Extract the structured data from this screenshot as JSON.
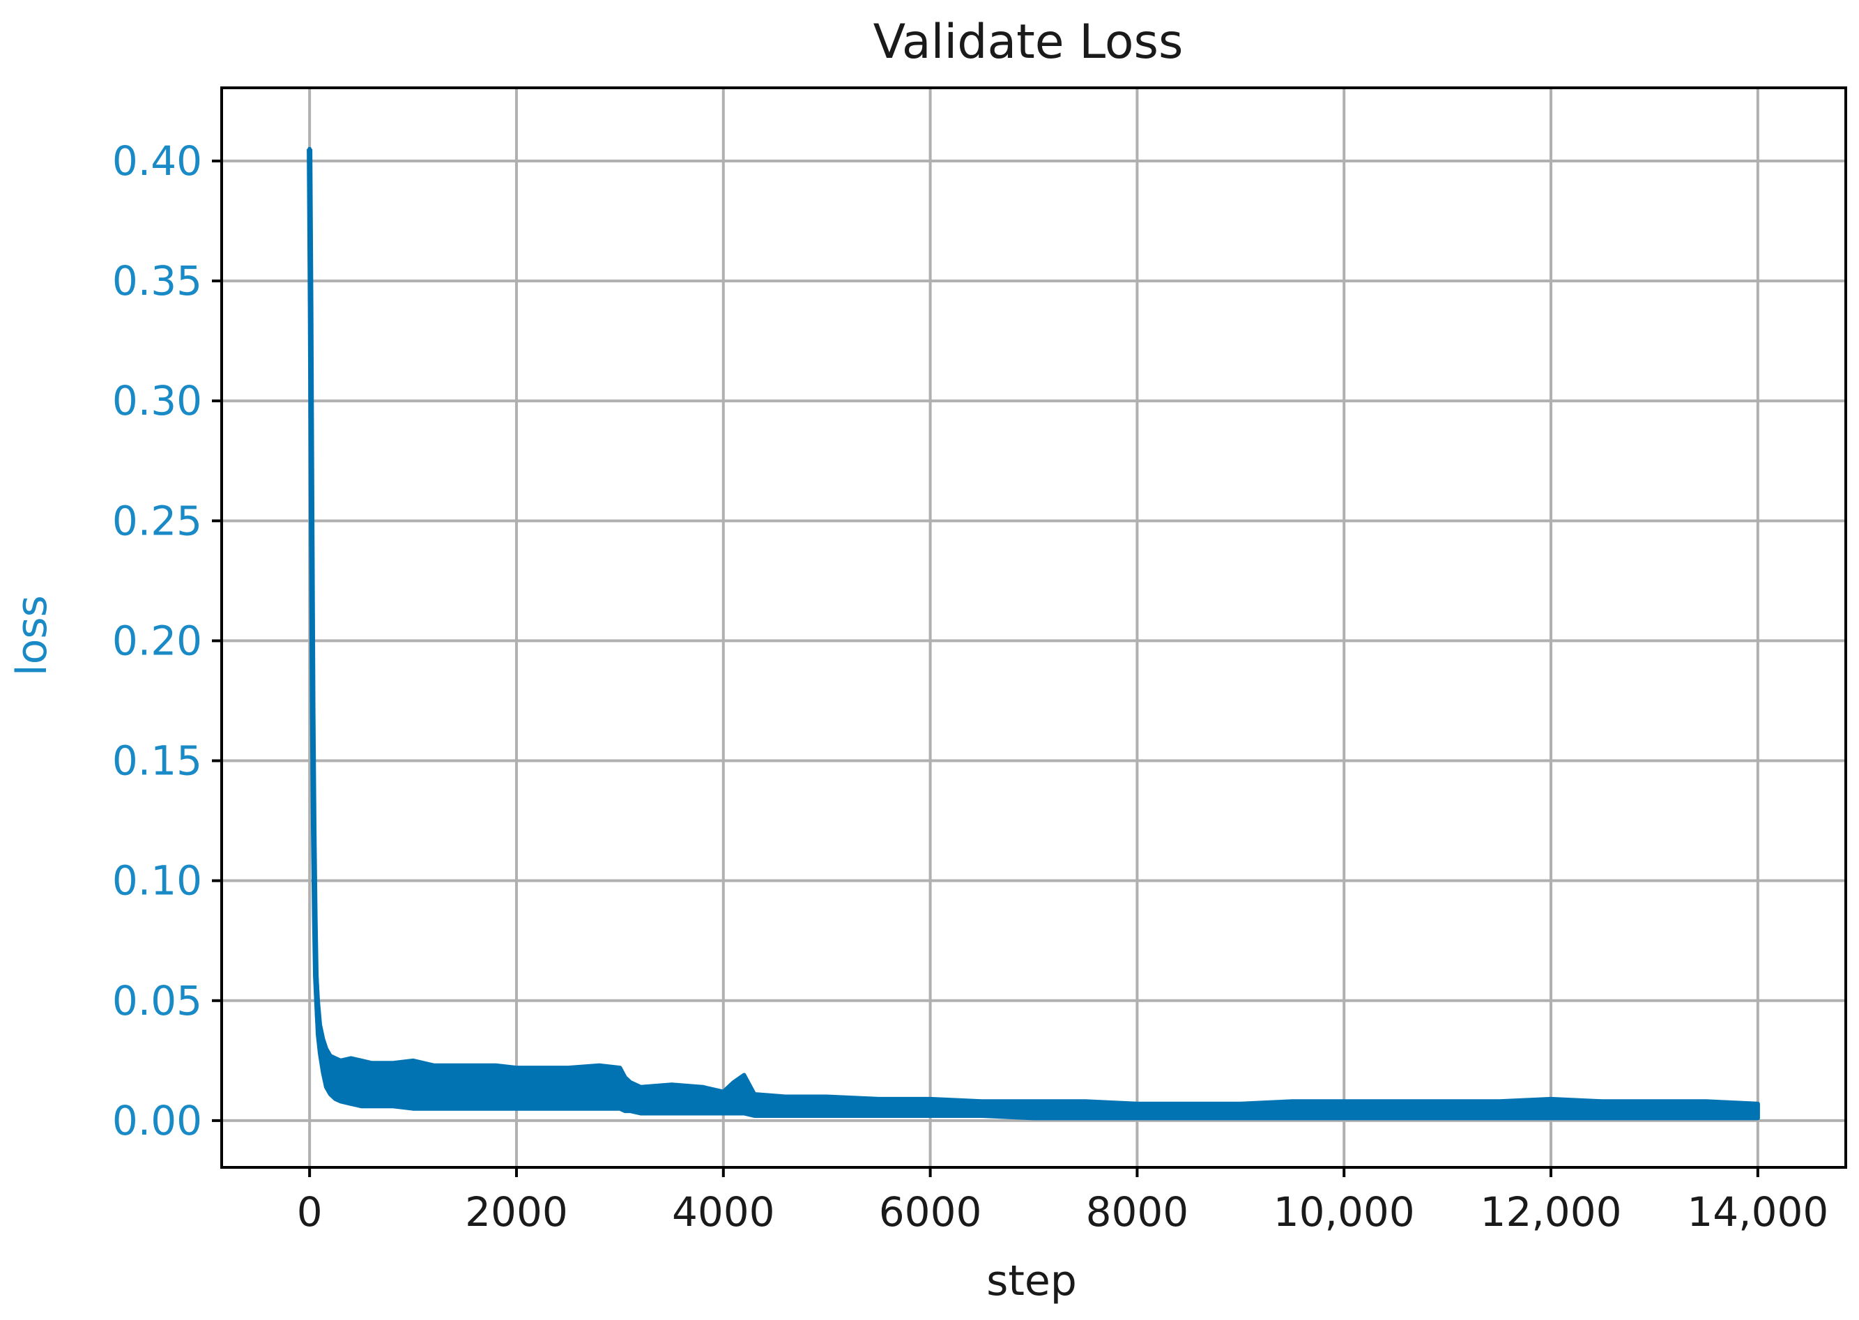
{
  "chart_data": {
    "type": "line",
    "title": "Validate Loss",
    "xlabel": "step",
    "ylabel": "loss",
    "xlim": [
      -850,
      14850
    ],
    "ylim": [
      -0.0195,
      0.4305
    ],
    "xticks": [
      0,
      2000,
      4000,
      6000,
      8000,
      10000,
      12000,
      14000
    ],
    "xtick_labels": [
      "0",
      "2000",
      "4000",
      "6000",
      "8000",
      "10,000",
      "12,000",
      "14,000"
    ],
    "yticks": [
      0.0,
      0.05,
      0.1,
      0.15,
      0.2,
      0.25,
      0.3,
      0.35,
      0.4
    ],
    "ytick_labels": [
      "0.00",
      "0.05",
      "0.10",
      "0.15",
      "0.20",
      "0.25",
      "0.30",
      "0.35",
      "0.40"
    ],
    "grid": true,
    "colors": {
      "line": "#0173b2",
      "ylabel": "#1a8ac6",
      "grid": "#b0b0b0"
    },
    "series": [
      {
        "x": [
          0,
          10,
          20,
          30,
          40,
          50,
          60,
          80,
          100,
          130,
          160,
          200,
          250,
          300,
          400,
          500,
          600,
          800,
          1000,
          1200,
          1500,
          1800,
          2000,
          2200,
          2500,
          2800,
          3000,
          3050,
          3100,
          3200,
          3500,
          3800,
          4000,
          4100,
          4200,
          4300,
          4600,
          5000,
          5500,
          6000,
          6500,
          7000,
          7500,
          8000,
          8500,
          9000,
          9500,
          10000,
          10500,
          11000,
          11500,
          12000,
          12500,
          13000,
          13500,
          14000
        ],
        "y": [
          0.405,
          0.34,
          0.25,
          0.17,
          0.12,
          0.085,
          0.06,
          0.042,
          0.033,
          0.026,
          0.021,
          0.019,
          0.017,
          0.016,
          0.015,
          0.014,
          0.014,
          0.013,
          0.013,
          0.013,
          0.012,
          0.012,
          0.012,
          0.012,
          0.012,
          0.012,
          0.011,
          0.01,
          0.009,
          0.008,
          0.008,
          0.008,
          0.007,
          0.009,
          0.008,
          0.007,
          0.006,
          0.006,
          0.005,
          0.005,
          0.005,
          0.004,
          0.004,
          0.004,
          0.004,
          0.004,
          0.004,
          0.004,
          0.004,
          0.004,
          0.004,
          0.004,
          0.004,
          0.004,
          0.004,
          0.004
        ],
        "band_low": [
          0.405,
          0.34,
          0.25,
          0.17,
          0.12,
          0.085,
          0.055,
          0.036,
          0.028,
          0.02,
          0.014,
          0.011,
          0.009,
          0.008,
          0.007,
          0.006,
          0.006,
          0.006,
          0.005,
          0.005,
          0.005,
          0.005,
          0.005,
          0.005,
          0.005,
          0.005,
          0.005,
          0.004,
          0.004,
          0.003,
          0.003,
          0.003,
          0.003,
          0.003,
          0.003,
          0.002,
          0.002,
          0.002,
          0.002,
          0.002,
          0.002,
          0.001,
          0.001,
          0.001,
          0.001,
          0.001,
          0.001,
          0.001,
          0.001,
          0.001,
          0.001,
          0.001,
          0.001,
          0.001,
          0.001,
          0.001
        ],
        "band_high": [
          0.405,
          0.34,
          0.25,
          0.17,
          0.12,
          0.085,
          0.065,
          0.05,
          0.04,
          0.034,
          0.03,
          0.027,
          0.026,
          0.025,
          0.026,
          0.025,
          0.024,
          0.024,
          0.025,
          0.023,
          0.023,
          0.023,
          0.022,
          0.022,
          0.022,
          0.023,
          0.022,
          0.018,
          0.016,
          0.014,
          0.015,
          0.014,
          0.012,
          0.016,
          0.019,
          0.011,
          0.01,
          0.01,
          0.009,
          0.009,
          0.008,
          0.008,
          0.008,
          0.007,
          0.007,
          0.007,
          0.008,
          0.008,
          0.008,
          0.008,
          0.008,
          0.009,
          0.008,
          0.008,
          0.008,
          0.007
        ]
      }
    ]
  }
}
